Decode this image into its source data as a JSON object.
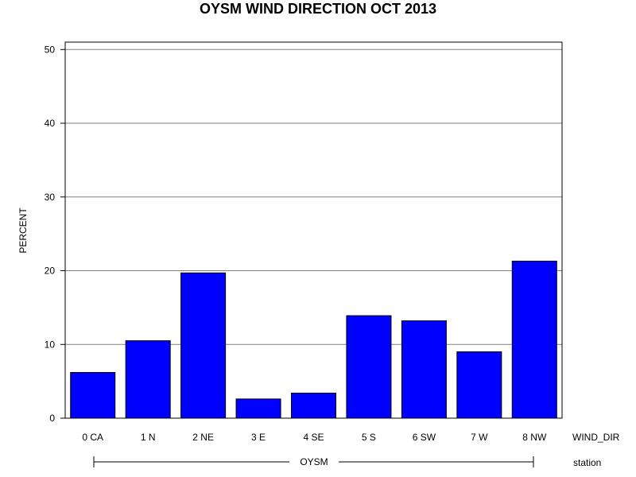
{
  "chart_data": {
    "type": "bar",
    "title": "OYSM WIND DIRECTION OCT 2013",
    "ylabel": "PERCENT",
    "xlabel": "WIND_DIR",
    "group_label": "station",
    "group_value": "OYSM",
    "categories": [
      "0 CA",
      "1 N",
      "2 NE",
      "3 E",
      "4 SE",
      "5 S",
      "6 SW",
      "7 W",
      "8 NW"
    ],
    "values": [
      6.2,
      10.5,
      19.7,
      2.6,
      3.4,
      13.9,
      13.2,
      9.0,
      21.3
    ],
    "ylim": [
      0,
      51
    ],
    "yticks": [
      0,
      10,
      20,
      30,
      40,
      50
    ],
    "grid": true,
    "bar_color": "#0000ff"
  }
}
